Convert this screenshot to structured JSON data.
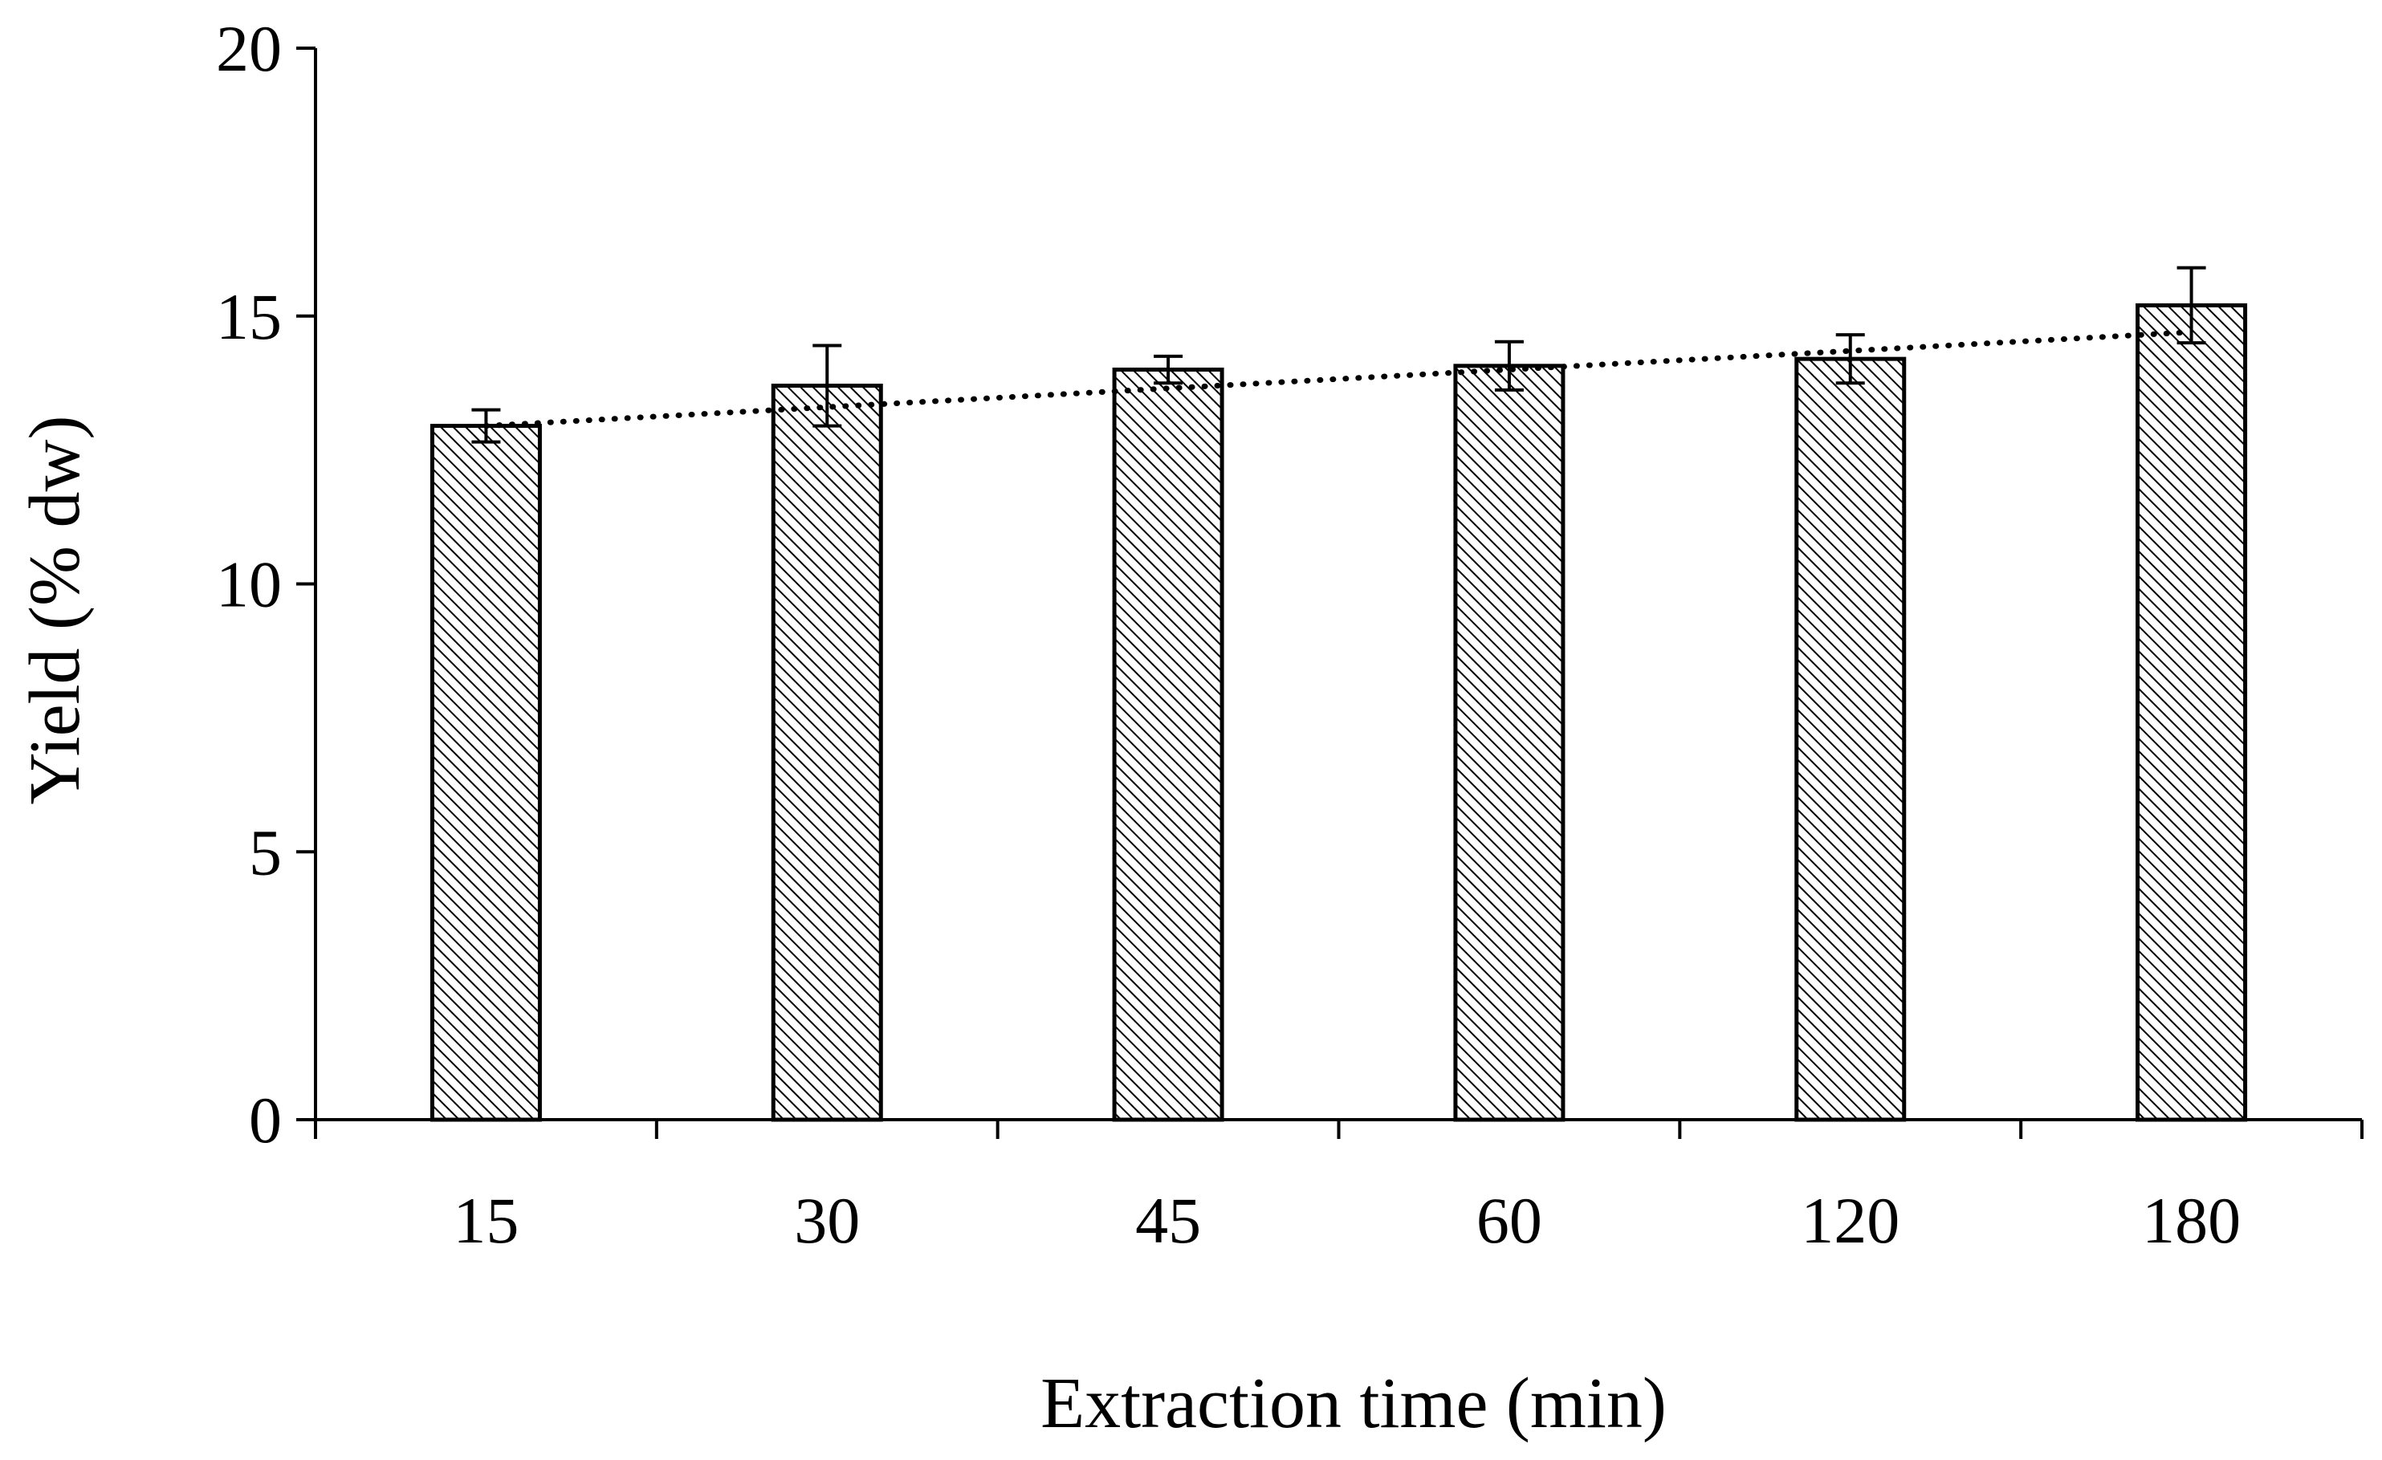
{
  "chart_data": {
    "type": "bar",
    "title": "",
    "xlabel": "Extraction time (min)",
    "ylabel": "Yield (% dw)",
    "categories": [
      "15",
      "30",
      "45",
      "60",
      "120",
      "180"
    ],
    "series": [
      {
        "name": "Yield",
        "values": [
          12.95,
          13.7,
          14.0,
          14.07,
          14.2,
          15.2
        ],
        "errors": [
          0.3,
          0.75,
          0.25,
          0.45,
          0.45,
          0.7
        ],
        "fill_pattern": "diagonal-hatch"
      }
    ],
    "trendline": {
      "type": "linear",
      "style": "dotted",
      "start_value": 12.95,
      "end_value": 14.7
    },
    "ylim": [
      0,
      20
    ],
    "yticks": [
      0,
      5,
      10,
      15,
      20
    ],
    "grid": false,
    "legend": "none",
    "colors": {
      "axis": "#000000",
      "bar_fill": "#ffffff",
      "hatch": "#000000",
      "trendline": "#000000"
    }
  }
}
